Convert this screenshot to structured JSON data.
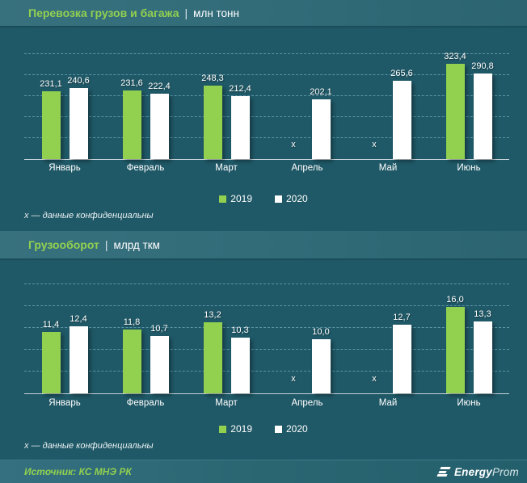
{
  "ui": {
    "separator": "|"
  },
  "colors": {
    "accent_green": "#92D050",
    "bar_2020": "#FFFFFF",
    "background": "#1F5866"
  },
  "chart_data": [
    {
      "type": "bar",
      "title": "Перевозка грузов и багажа",
      "unit": "млн тонн",
      "categories": [
        "Январь",
        "Февраль",
        "Март",
        "Апрель",
        "Май",
        "Июнь"
      ],
      "series": [
        {
          "name": "2019",
          "color": "#92D050",
          "values": [
            231.1,
            231.6,
            248.3,
            null,
            null,
            323.4
          ],
          "labels": [
            "231,1",
            "231,6",
            "248,3",
            "x",
            "x",
            "323,4"
          ]
        },
        {
          "name": "2020",
          "color": "#FFFFFF",
          "values": [
            240.6,
            222.4,
            212.4,
            202.1,
            265.6,
            290.8
          ],
          "labels": [
            "240,6",
            "222,4",
            "212,4",
            "202,1",
            "265,6",
            "290,8"
          ]
        }
      ],
      "ylim": [
        0,
        430
      ],
      "grid": "dashed-horizontal",
      "legend_position": "bottom",
      "note": "х — данные конфиденциальны"
    },
    {
      "type": "bar",
      "title": "Грузооборот",
      "unit": "млрд ткм",
      "categories": [
        "Январь",
        "Февраль",
        "Март",
        "Апрель",
        "Май",
        "Июнь"
      ],
      "series": [
        {
          "name": "2019",
          "color": "#92D050",
          "values": [
            11.4,
            11.8,
            13.2,
            null,
            null,
            16.0
          ],
          "labels": [
            "11,4",
            "11,8",
            "13,2",
            "x",
            "x",
            "16,0"
          ]
        },
        {
          "name": "2020",
          "color": "#FFFFFF",
          "values": [
            12.4,
            10.7,
            10.3,
            10.0,
            12.7,
            13.3
          ],
          "labels": [
            "12,4",
            "10,7",
            "10,3",
            "10,0",
            "12,7",
            "13,3"
          ]
        }
      ],
      "ylim": [
        0,
        22.5
      ],
      "grid": "dashed-horizontal",
      "legend_position": "bottom",
      "note": "х — данные конфиденциальны"
    }
  ],
  "legend": {
    "items": [
      {
        "label": "2019",
        "color": "#92D050"
      },
      {
        "label": "2020",
        "color": "#FFFFFF"
      }
    ]
  },
  "footer": {
    "source": "Источник: КС МНЭ РК",
    "logo_bold": "Energy",
    "logo_light": "Prom"
  }
}
